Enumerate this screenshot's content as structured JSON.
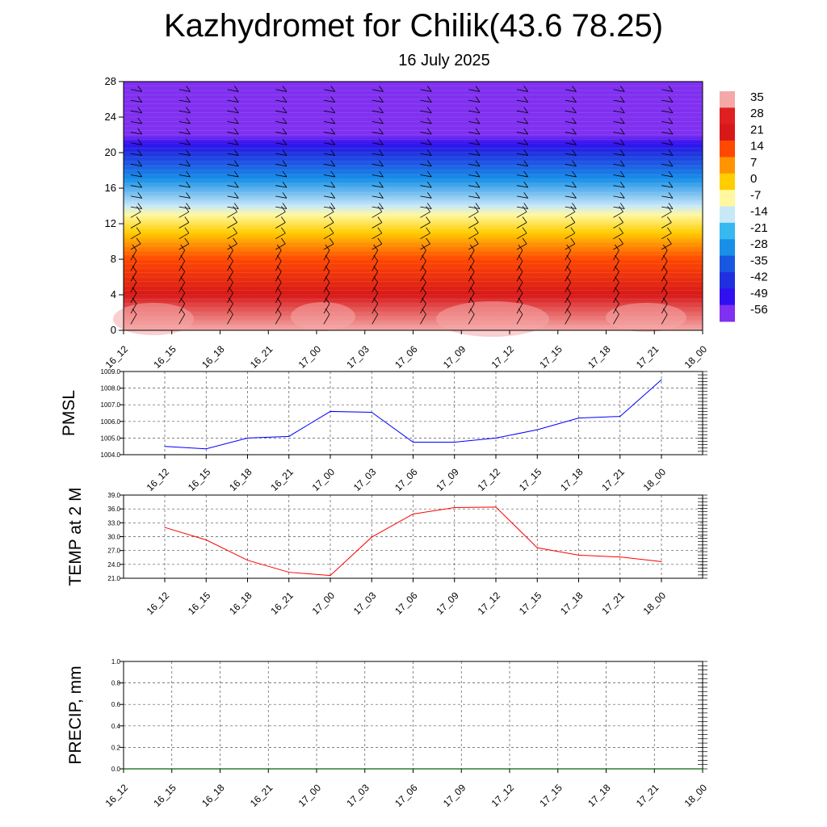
{
  "title": "Kazhydromet for Chilik(43.6 78.25)",
  "subtitle": "16 July 2025",
  "time_labels": [
    "16_12",
    "16_15",
    "16_18",
    "16_21",
    "17_00",
    "17_03",
    "17_06",
    "17_09",
    "17_12",
    "17_15",
    "17_18",
    "17_21",
    "18_00"
  ],
  "colors": {
    "pmsl_line": "#0000ff",
    "temp_line": "#ff0000",
    "precip_line": "#006400",
    "grid": "#555555"
  },
  "chart_data": [
    {
      "type": "heatmap",
      "name": "",
      "x": [
        "16_12",
        "16_15",
        "16_18",
        "16_21",
        "17_00",
        "17_03",
        "17_06",
        "17_09",
        "17_12",
        "17_15",
        "17_18",
        "17_21",
        "18_00"
      ],
      "ylim": [
        0,
        28
      ],
      "yticks": [
        0,
        4,
        8,
        12,
        16,
        20,
        24,
        28
      ],
      "colorbar": {
        "labels": [
          "35",
          "28",
          "21",
          "14",
          "7",
          "0",
          "-7",
          "-14",
          "-21",
          "-28",
          "-35",
          "-42",
          "-49",
          "-56"
        ],
        "colors": [
          "#f5a8a8",
          "#e02020",
          "#d81818",
          "#ff4800",
          "#ff9400",
          "#ffcd00",
          "#fff8a0",
          "#c8e8f8",
          "#38b8f0",
          "#1890e8",
          "#1858e0",
          "#2030e0",
          "#3010f0",
          "#8030f0"
        ]
      },
      "profile": [
        {
          "z": 0,
          "t": 33
        },
        {
          "z": 4,
          "t": 22
        },
        {
          "z": 8,
          "t": 14
        },
        {
          "z": 11,
          "t": 1
        },
        {
          "z": 13,
          "t": -8
        },
        {
          "z": 14,
          "t": -18
        },
        {
          "z": 17,
          "t": -30
        },
        {
          "z": 20,
          "t": -45
        },
        {
          "z": 21,
          "t": -55
        },
        {
          "z": 22,
          "t": -60
        },
        {
          "z": 28,
          "t": -60
        }
      ],
      "wind_barbs": true
    },
    {
      "type": "line",
      "ylabel": "PMSL",
      "categories": [
        "16_12",
        "16_15",
        "16_18",
        "16_21",
        "17_00",
        "17_03",
        "17_06",
        "17_09",
        "17_12",
        "17_15",
        "17_18",
        "17_21",
        "18_00"
      ],
      "series": [
        {
          "values": [
            1004.5,
            1004.35,
            1005.0,
            1005.1,
            1006.6,
            1006.55,
            1004.75,
            1004.75,
            1005.0,
            1005.5,
            1006.2,
            1006.3,
            1008.5
          ]
        }
      ],
      "ylim": [
        1004.0,
        1009.0
      ],
      "yticks": [
        "1004.0",
        "1005.0",
        "1006.0",
        "1007.0",
        "1008.0",
        "1009.0"
      ]
    },
    {
      "type": "line",
      "ylabel": "TEMP at 2 M",
      "categories": [
        "16_12",
        "16_15",
        "16_18",
        "16_21",
        "17_00",
        "17_03",
        "17_06",
        "17_09",
        "17_12",
        "17_15",
        "17_18",
        "17_21",
        "18_00"
      ],
      "series": [
        {
          "values": [
            32.0,
            29.3,
            24.9,
            22.3,
            21.6,
            29.9,
            34.9,
            36.3,
            36.4,
            27.6,
            26.0,
            25.6,
            24.6
          ]
        }
      ],
      "ylim": [
        21.0,
        39.0
      ],
      "yticks": [
        "21.0",
        "24.0",
        "27.0",
        "30.0",
        "33.0",
        "36.0",
        "39.0"
      ]
    },
    {
      "type": "line",
      "ylabel": "PRECIP, mm",
      "categories": [
        "16_12",
        "16_15",
        "16_18",
        "16_21",
        "17_00",
        "17_03",
        "17_06",
        "17_09",
        "17_12",
        "17_15",
        "17_18",
        "17_21",
        "18_00"
      ],
      "series": [
        {
          "values": [
            0,
            0,
            0,
            0,
            0,
            0,
            0,
            0,
            0,
            0,
            0,
            0,
            0
          ]
        }
      ],
      "ylim": [
        0.0,
        1.0
      ],
      "yticks": [
        "0.0",
        "0.2",
        "0.4",
        "0.6",
        "0.8",
        "1.0"
      ]
    }
  ]
}
